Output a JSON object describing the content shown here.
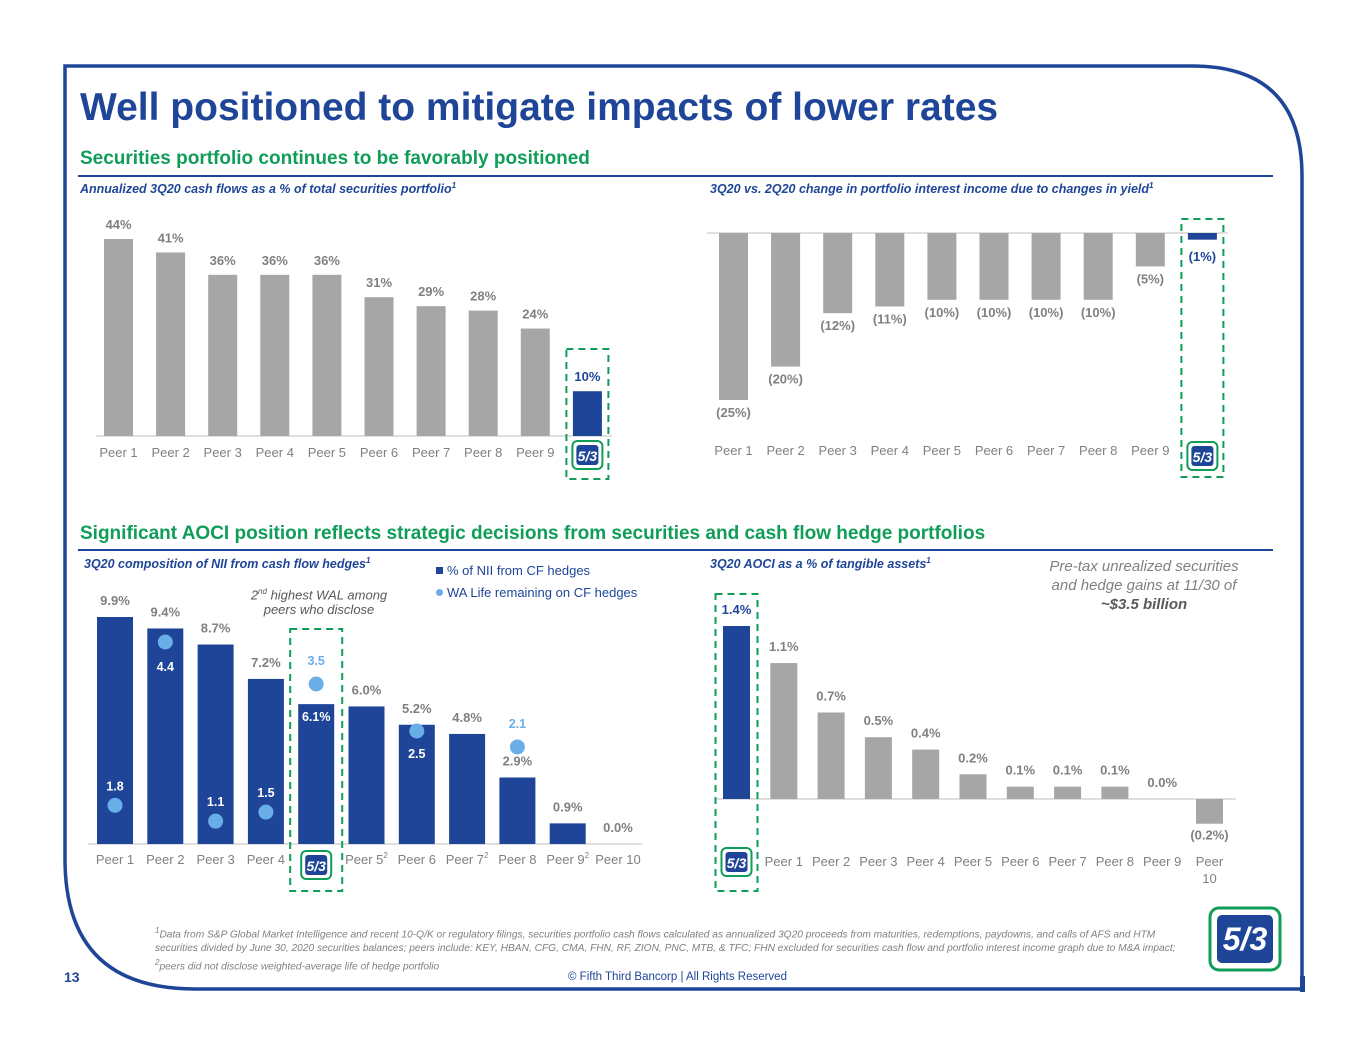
{
  "slide": {
    "title": "Well positioned to mitigate impacts of lower rates",
    "page_number": "13",
    "copyright": "© Fifth Third Bancorp | All Rights Reserved",
    "brand_colors": {
      "navy": "#1f4598",
      "green": "#0f9d58",
      "gray": "#a6a6a6",
      "light_blue": "#6aaee8"
    }
  },
  "section1": {
    "heading": "Securities portfolio continues to be favorably positioned"
  },
  "section2": {
    "heading": "Significant AOCI position reflects strategic decisions from securities and cash flow hedge portfolios"
  },
  "chart1": {
    "subtitle": "Annualized 3Q20 cash flows as a % of total securities portfolio",
    "sup": "1"
  },
  "chart2": {
    "subtitle": "3Q20 vs. 2Q20 change in portfolio interest income due to changes in yield",
    "sup": "1"
  },
  "chart3": {
    "subtitle": "3Q20 composition of NII from cash flow hedges",
    "sup": "1",
    "legend_bar": "% of NII from CF hedges",
    "legend_dot": "WA Life remaining on CF hedges",
    "note_sup": "nd",
    "note_pre": "2",
    "note_text": " highest WAL among peers who disclose"
  },
  "chart4": {
    "subtitle": "3Q20 AOCI as a % of tangible assets",
    "sup": "1",
    "callout_line1": "Pre-tax unrealized securities",
    "callout_line2": "and hedge gains at 11/30 of",
    "callout_bold": "~$3.5 billion"
  },
  "footnote": {
    "sup1": "1",
    "text1": "Data from S&P Global Market Intelligence and recent 10-Q/K or regulatory filings, securities portfolio cash flows calculated as annualized 3Q20 proceeds from maturities, redemptions, paydowns, and calls of AFS and HTM securities divided by June 30, 2020 securities balances; peers include: KEY, HBAN, CFG, CMA, FHN, RF, ZION, PNC, MTB, & TFC; FHN excluded for securities cash flow and portfolio interest income graph due to M&A impact; ",
    "sup2": "2",
    "text2": "peers did not disclose weighted-average life of hedge portfolio"
  },
  "chart_data": [
    {
      "type": "bar",
      "title": "Annualized 3Q20 cash flows as a % of total securities portfolio",
      "categories": [
        "Peer 1",
        "Peer 2",
        "Peer 3",
        "Peer 4",
        "Peer 5",
        "Peer 6",
        "Peer 7",
        "Peer 8",
        "Peer 9",
        "Fifth Third"
      ],
      "values": [
        44,
        41,
        36,
        36,
        36,
        31,
        29,
        28,
        24,
        10
      ],
      "labels": [
        "44%",
        "41%",
        "36%",
        "36%",
        "36%",
        "31%",
        "29%",
        "28%",
        "24%",
        "10%"
      ],
      "unit": "%",
      "ylim": [
        0,
        44
      ],
      "highlight_index": 9
    },
    {
      "type": "bar",
      "title": "3Q20 vs. 2Q20 change in portfolio interest income due to changes in yield",
      "categories": [
        "Peer 1",
        "Peer 2",
        "Peer 3",
        "Peer 4",
        "Peer 5",
        "Peer 6",
        "Peer 7",
        "Peer 8",
        "Peer 9",
        "Fifth Third"
      ],
      "values": [
        -25,
        -20,
        -12,
        -11,
        -10,
        -10,
        -10,
        -10,
        -5,
        -1
      ],
      "labels": [
        "(25%)",
        "(20%)",
        "(12%)",
        "(11%)",
        "(10%)",
        "(10%)",
        "(10%)",
        "(10%)",
        "(5%)",
        "(1%)"
      ],
      "unit": "%",
      "ylim": [
        -25,
        0
      ],
      "highlight_index": 9
    },
    {
      "type": "bar",
      "title": "3Q20 composition of NII from cash flow hedges",
      "categories": [
        "Peer 1",
        "Peer 2",
        "Peer 3",
        "Peer 4",
        "Fifth Third",
        "Peer 5",
        "Peer 6",
        "Peer 7",
        "Peer 8",
        "Peer 9",
        "Peer 10"
      ],
      "category_sups": [
        "",
        "",
        "",
        "",
        "",
        "2",
        "",
        "2",
        "",
        "2",
        ""
      ],
      "series": [
        {
          "name": "% of NII from CF hedges",
          "values": [
            9.9,
            9.4,
            8.7,
            7.2,
            6.1,
            6.0,
            5.2,
            4.8,
            2.9,
            0.9,
            0.0
          ],
          "labels": [
            "9.9%",
            "9.4%",
            "8.7%",
            "7.2%",
            "6.1%",
            "6.0%",
            "5.2%",
            "4.8%",
            "2.9%",
            "0.9%",
            "0.0%"
          ]
        },
        {
          "name": "WA Life remaining on CF hedges",
          "values": [
            1.8,
            4.4,
            1.1,
            1.5,
            3.5,
            null,
            2.5,
            null,
            2.1,
            null,
            null
          ],
          "labels": [
            "1.8",
            "4.4",
            "1.1",
            "1.5",
            "3.5",
            "",
            "2.5",
            "",
            "2.1",
            "",
            ""
          ]
        }
      ],
      "unit": "%",
      "ylim": [
        0,
        9.9
      ],
      "highlight_index": 4
    },
    {
      "type": "bar",
      "title": "3Q20 AOCI as a % of tangible assets",
      "categories": [
        "Fifth Third",
        "Peer 1",
        "Peer 2",
        "Peer 3",
        "Peer 4",
        "Peer 5",
        "Peer 6",
        "Peer 7",
        "Peer 8",
        "Peer 9",
        "Peer 10"
      ],
      "values": [
        1.4,
        1.1,
        0.7,
        0.5,
        0.4,
        0.2,
        0.1,
        0.1,
        0.1,
        0.0,
        -0.2
      ],
      "labels": [
        "1.4%",
        "1.1%",
        "0.7%",
        "0.5%",
        "0.4%",
        "0.2%",
        "0.1%",
        "0.1%",
        "0.1%",
        "0.0%",
        "(0.2%)"
      ],
      "unit": "%",
      "ylim": [
        -0.2,
        1.4
      ],
      "highlight_index": 0
    }
  ]
}
